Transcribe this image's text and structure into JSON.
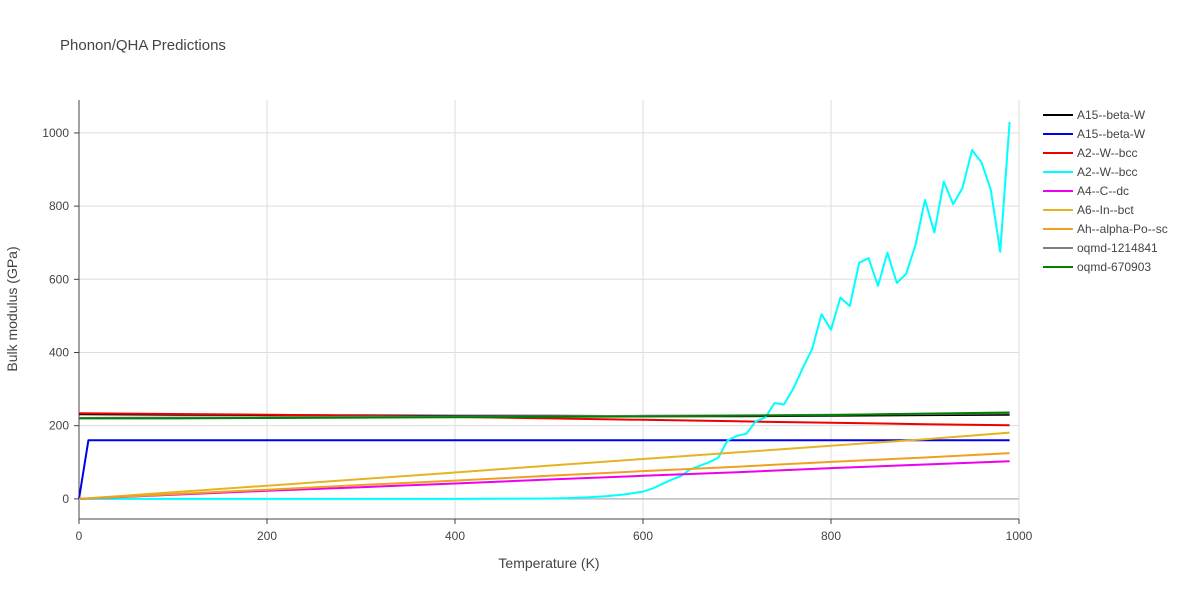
{
  "chart_data": {
    "type": "line",
    "title": "Phonon/QHA Predictions",
    "xlabel": "Temperature (K)",
    "ylabel": "Bulk modulus (GPa)",
    "xlim": [
      0,
      1000
    ],
    "ylim": [
      -55,
      1090
    ],
    "xticks": [
      0,
      200,
      400,
      600,
      800,
      1000
    ],
    "yticks": [
      0,
      200,
      400,
      600,
      800,
      1000
    ],
    "xtick_labels": [
      "0",
      "200",
      "400",
      "600",
      "800",
      "1000"
    ],
    "ytick_labels": [
      "0",
      "200",
      "400",
      "600",
      "800",
      "1000"
    ],
    "grid": true,
    "legend_position": "right",
    "series": [
      {
        "name": "A15--beta-W",
        "color": "#000000",
        "x": [
          0,
          100,
          200,
          300,
          400,
          500,
          600,
          700,
          800,
          900,
          990
        ],
        "y": [
          231,
          230,
          229,
          228,
          227,
          227,
          226,
          226,
          227,
          229,
          230
        ]
      },
      {
        "name": "A15--beta-W",
        "color": "#0000ee",
        "x": [
          0,
          10,
          100,
          200,
          300,
          400,
          500,
          600,
          700,
          800,
          900,
          990
        ],
        "y": [
          0,
          160,
          160,
          160,
          160,
          160,
          160,
          160,
          160,
          160,
          160,
          160
        ]
      },
      {
        "name": "A2--W--bcc",
        "color": "#ee0000",
        "x": [
          0,
          100,
          200,
          300,
          400,
          500,
          600,
          700,
          800,
          900,
          990
        ],
        "y": [
          234,
          232,
          230,
          227,
          224,
          220,
          216,
          212,
          208,
          204,
          201
        ]
      },
      {
        "name": "A2--W--bcc",
        "color": "#00ffff",
        "x": [
          0,
          100,
          200,
          300,
          400,
          500,
          520,
          540,
          560,
          580,
          600,
          610,
          620,
          630,
          640,
          650,
          660,
          670,
          680,
          690,
          700,
          710,
          720,
          730,
          740,
          750,
          760,
          770,
          780,
          790,
          800,
          810,
          820,
          830,
          840,
          850,
          860,
          870,
          880,
          890,
          900,
          910,
          920,
          930,
          940,
          950,
          960,
          970,
          980,
          990
        ],
        "y": [
          0,
          0,
          0,
          0,
          0,
          1,
          2,
          4,
          7,
          12,
          20,
          28,
          40,
          52,
          62,
          80,
          90,
          100,
          112,
          160,
          172,
          178,
          212,
          222,
          262,
          258,
          302,
          358,
          410,
          505,
          462,
          550,
          527,
          645,
          658,
          582,
          673,
          590,
          615,
          695,
          817,
          728,
          867,
          805,
          850,
          953,
          920,
          845,
          675,
          1030
        ]
      },
      {
        "name": "A4--C--dc",
        "color": "#ee00ee",
        "x": [
          0,
          100,
          200,
          300,
          400,
          500,
          600,
          700,
          800,
          900,
          990
        ],
        "y": [
          0,
          11,
          22,
          32,
          42,
          53,
          63,
          73,
          84,
          94,
          103
        ]
      },
      {
        "name": "A6--In--bct",
        "color": "#e6b422",
        "x": [
          0,
          100,
          200,
          300,
          400,
          500,
          600,
          700,
          800,
          900,
          990
        ],
        "y": [
          0,
          18,
          36,
          54,
          72,
          91,
          109,
          127,
          145,
          163,
          181
        ]
      },
      {
        "name": "Ah--alpha-Po--sc",
        "color": "#f0a020",
        "x": [
          0,
          100,
          200,
          300,
          400,
          500,
          600,
          700,
          800,
          900,
          990
        ],
        "y": [
          0,
          13,
          25,
          38,
          50,
          63,
          76,
          88,
          101,
          113,
          125
        ]
      },
      {
        "name": "oqmd-1214841",
        "color": "#808080",
        "x": [
          0,
          100,
          200,
          300,
          400,
          500,
          600,
          700,
          800,
          900,
          990
        ],
        "y": [
          221,
          222,
          223,
          224,
          225,
          226,
          227,
          228,
          230,
          232,
          234
        ]
      },
      {
        "name": "oqmd-670903",
        "color": "#007f00",
        "x": [
          0,
          100,
          200,
          300,
          400,
          500,
          600,
          700,
          800,
          900,
          990
        ],
        "y": [
          220,
          220,
          221,
          222,
          223,
          224,
          225,
          227,
          229,
          233,
          236
        ]
      }
    ]
  }
}
